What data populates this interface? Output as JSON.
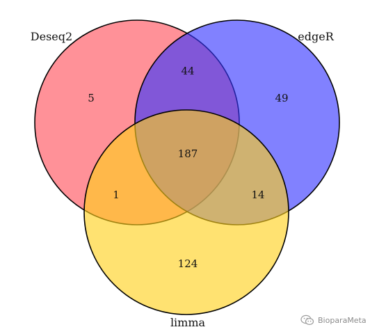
{
  "sets": [
    {
      "key": "deseq2",
      "label": "Deseq2",
      "color": "#ff4d58"
    },
    {
      "key": "edger",
      "label": "edgeR",
      "color": "#3333ff"
    },
    {
      "key": "limma",
      "label": "limma",
      "color": "#ffd11a"
    }
  ],
  "regions": {
    "deseq2_only": "5",
    "edger_only": "49",
    "limma_only": "124",
    "deseq2_edger": "44",
    "deseq2_limma": "1",
    "edger_limma": "14",
    "all_three": "187"
  },
  "watermark": {
    "text": "BioparaMeta",
    "icon": "wechat-icon"
  }
}
